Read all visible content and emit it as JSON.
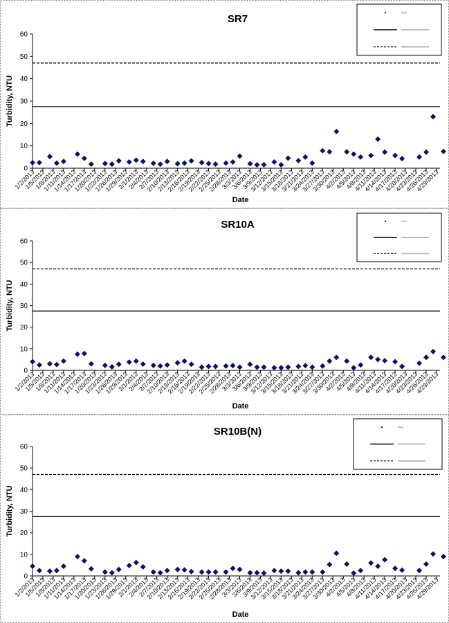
{
  "x_ticks": [
    "1/2/2013",
    "1/5/2013",
    "1/8/2013",
    "1/11/2013",
    "1/14/2013",
    "1/17/2013",
    "1/20/2013",
    "1/23/2013",
    "1/26/2013",
    "1/29/2013",
    "2/1/2013",
    "2/4/2013",
    "2/7/2013",
    "2/10/2013",
    "2/13/2013",
    "2/16/2013",
    "2/19/2013",
    "2/22/2013",
    "2/25/2013",
    "2/28/2013",
    "3/3/2013",
    "3/6/2013",
    "3/9/2013",
    "3/12/2013",
    "3/15/2013",
    "3/18/2013",
    "3/21/2013",
    "3/24/2013",
    "3/27/2013",
    "3/30/2013",
    "4/2/2013",
    "4/5/2013",
    "4/8/2013",
    "4/11/2013",
    "4/14/2013",
    "4/17/2013",
    "4/20/2013",
    "4/23/2013",
    "4/26/2013",
    "4/29/2013"
  ],
  "colors": {
    "marker": "#0d0d6e",
    "line": "#000000",
    "frame": "#7f7f7f"
  },
  "chart_data": [
    {
      "type": "scatter",
      "title": "SR7",
      "xlabel": "Date",
      "ylabel": "Turbidity, NTU",
      "ylim": [
        0,
        60
      ],
      "yticks": [
        0,
        10,
        20,
        30,
        40,
        50,
        60
      ],
      "xlim": [
        "1/2/2013",
        "4/30/2013"
      ],
      "grid": false,
      "legend_position": "top-right",
      "reference_lines": [
        {
          "y": 27.5,
          "style": "solid"
        },
        {
          "y": 47,
          "style": "dashed"
        }
      ],
      "points": [
        [
          "1/2/2013",
          2.5
        ],
        [
          "1/4/2013",
          2.5
        ],
        [
          "1/7/2013",
          5.2
        ],
        [
          "1/9/2013",
          2.3
        ],
        [
          "1/11/2013",
          3.0
        ],
        [
          "1/15/2013",
          6.3
        ],
        [
          "1/17/2013",
          4.4
        ],
        [
          "1/19/2013",
          1.8
        ],
        [
          "1/23/2013",
          2.1
        ],
        [
          "1/25/2013",
          1.8
        ],
        [
          "1/27/2013",
          3.3
        ],
        [
          "1/30/2013",
          2.8
        ],
        [
          "2/1/2013",
          3.6
        ],
        [
          "2/3/2013",
          3.0
        ],
        [
          "2/6/2013",
          2.2
        ],
        [
          "2/8/2013",
          1.8
        ],
        [
          "2/10/2013",
          3.0
        ],
        [
          "2/13/2013",
          2.0
        ],
        [
          "2/15/2013",
          2.3
        ],
        [
          "2/17/2013",
          3.3
        ],
        [
          "2/20/2013",
          2.5
        ],
        [
          "2/22/2013",
          2.1
        ],
        [
          "2/24/2013",
          1.8
        ],
        [
          "2/27/2013",
          2.3
        ],
        [
          "3/1/2013",
          2.8
        ],
        [
          "3/3/2013",
          5.4
        ],
        [
          "3/6/2013",
          2.0
        ],
        [
          "3/8/2013",
          1.5
        ],
        [
          "3/10/2013",
          1.6
        ],
        [
          "3/13/2013",
          2.8
        ],
        [
          "3/15/2013",
          1.5
        ],
        [
          "3/17/2013",
          4.5
        ],
        [
          "3/20/2013",
          3.4
        ],
        [
          "3/22/2013",
          5.0
        ],
        [
          "3/24/2013",
          2.3
        ],
        [
          "3/27/2013",
          7.8
        ],
        [
          "3/29/2013",
          7.3
        ],
        [
          "3/31/2013",
          16.4
        ],
        [
          "4/3/2013",
          7.3
        ],
        [
          "4/5/2013",
          6.3
        ],
        [
          "4/7/2013",
          5.0
        ],
        [
          "4/10/2013",
          5.7
        ],
        [
          "4/12/2013",
          13.0
        ],
        [
          "4/14/2013",
          7.2
        ],
        [
          "4/17/2013",
          5.7
        ],
        [
          "4/19/2013",
          4.3
        ],
        [
          "4/24/2013",
          5.0
        ],
        [
          "4/26/2013",
          7.2
        ],
        [
          "4/28/2013",
          23.0
        ],
        [
          "5/1/2013",
          7.5
        ]
      ]
    },
    {
      "type": "scatter",
      "title": "SR10A",
      "xlabel": "Date",
      "ylabel": "Turbidity, NTU",
      "ylim": [
        0,
        60
      ],
      "yticks": [
        0,
        10,
        20,
        30,
        40,
        50,
        60
      ],
      "xlim": [
        "1/2/2013",
        "4/30/2013"
      ],
      "grid": false,
      "legend_position": "top-right",
      "reference_lines": [
        {
          "y": 27.5,
          "style": "solid"
        },
        {
          "y": 47,
          "style": "dashed"
        }
      ],
      "points": [
        [
          "1/2/2013",
          4.0
        ],
        [
          "1/4/2013",
          2.5
        ],
        [
          "1/7/2013",
          3.0
        ],
        [
          "1/9/2013",
          2.7
        ],
        [
          "1/11/2013",
          4.3
        ],
        [
          "1/15/2013",
          7.5
        ],
        [
          "1/17/2013",
          7.8
        ],
        [
          "1/19/2013",
          3.0
        ],
        [
          "1/23/2013",
          2.3
        ],
        [
          "1/25/2013",
          1.6
        ],
        [
          "1/27/2013",
          2.8
        ],
        [
          "1/30/2013",
          3.8
        ],
        [
          "2/1/2013",
          4.3
        ],
        [
          "2/3/2013",
          2.9
        ],
        [
          "2/6/2013",
          2.3
        ],
        [
          "2/8/2013",
          2.0
        ],
        [
          "2/10/2013",
          2.5
        ],
        [
          "2/13/2013",
          3.5
        ],
        [
          "2/15/2013",
          4.3
        ],
        [
          "2/17/2013",
          2.8
        ],
        [
          "2/20/2013",
          1.5
        ],
        [
          "2/22/2013",
          1.8
        ],
        [
          "2/24/2013",
          1.8
        ],
        [
          "2/27/2013",
          2.0
        ],
        [
          "3/1/2013",
          2.2
        ],
        [
          "3/3/2013",
          1.5
        ],
        [
          "3/6/2013",
          2.8
        ],
        [
          "3/8/2013",
          1.5
        ],
        [
          "3/10/2013",
          1.5
        ],
        [
          "3/13/2013",
          1.2
        ],
        [
          "3/15/2013",
          1.2
        ],
        [
          "3/17/2013",
          1.5
        ],
        [
          "3/20/2013",
          1.8
        ],
        [
          "3/22/2013",
          2.2
        ],
        [
          "3/24/2013",
          1.5
        ],
        [
          "3/27/2013",
          2.0
        ],
        [
          "3/29/2013",
          4.3
        ],
        [
          "3/31/2013",
          6.0
        ],
        [
          "4/3/2013",
          4.3
        ],
        [
          "4/5/2013",
          1.2
        ],
        [
          "4/7/2013",
          2.5
        ],
        [
          "4/10/2013",
          6.0
        ],
        [
          "4/12/2013",
          5.0
        ],
        [
          "4/14/2013",
          4.5
        ],
        [
          "4/17/2013",
          4.0
        ],
        [
          "4/19/2013",
          1.8
        ],
        [
          "4/24/2013",
          3.3
        ],
        [
          "4/26/2013",
          6.0
        ],
        [
          "4/28/2013",
          8.7
        ],
        [
          "5/1/2013",
          6.0
        ]
      ]
    },
    {
      "type": "scatter",
      "title": "SR10B(N)",
      "xlabel": "Date",
      "ylabel": "Turbidity, NTU",
      "ylim": [
        0,
        60
      ],
      "yticks": [
        0,
        10,
        20,
        30,
        40,
        50,
        60
      ],
      "xlim": [
        "1/2/2013",
        "4/30/2013"
      ],
      "grid": false,
      "legend_position": "top-right",
      "reference_lines": [
        {
          "y": 27.5,
          "style": "solid"
        },
        {
          "y": 47,
          "style": "dashed"
        }
      ],
      "points": [
        [
          "1/2/2013",
          4.5
        ],
        [
          "1/4/2013",
          2.5
        ],
        [
          "1/7/2013",
          2.2
        ],
        [
          "1/9/2013",
          2.5
        ],
        [
          "1/11/2013",
          4.5
        ],
        [
          "1/15/2013",
          9.0
        ],
        [
          "1/17/2013",
          7.0
        ],
        [
          "1/19/2013",
          3.3
        ],
        [
          "1/23/2013",
          1.8
        ],
        [
          "1/25/2013",
          1.5
        ],
        [
          "1/27/2013",
          3.0
        ],
        [
          "1/30/2013",
          4.8
        ],
        [
          "2/1/2013",
          6.2
        ],
        [
          "2/3/2013",
          4.2
        ],
        [
          "2/6/2013",
          1.8
        ],
        [
          "2/8/2013",
          1.5
        ],
        [
          "2/10/2013",
          2.5
        ],
        [
          "2/13/2013",
          3.0
        ],
        [
          "2/15/2013",
          2.8
        ],
        [
          "2/17/2013",
          2.0
        ],
        [
          "2/20/2013",
          1.8
        ],
        [
          "2/22/2013",
          1.8
        ],
        [
          "2/24/2013",
          1.8
        ],
        [
          "2/27/2013",
          1.8
        ],
        [
          "3/1/2013",
          3.5
        ],
        [
          "3/3/2013",
          3.0
        ],
        [
          "3/6/2013",
          1.5
        ],
        [
          "3/8/2013",
          1.5
        ],
        [
          "3/10/2013",
          1.3
        ],
        [
          "3/13/2013",
          2.5
        ],
        [
          "3/15/2013",
          2.2
        ],
        [
          "3/17/2013",
          2.2
        ],
        [
          "3/20/2013",
          1.5
        ],
        [
          "3/22/2013",
          1.8
        ],
        [
          "3/24/2013",
          1.8
        ],
        [
          "3/27/2013",
          1.8
        ],
        [
          "3/29/2013",
          5.3
        ],
        [
          "3/31/2013",
          10.5
        ],
        [
          "4/3/2013",
          5.5
        ],
        [
          "4/5/2013",
          1.3
        ],
        [
          "4/7/2013",
          2.5
        ],
        [
          "4/10/2013",
          6.0
        ],
        [
          "4/12/2013",
          4.5
        ],
        [
          "4/14/2013",
          7.5
        ],
        [
          "4/17/2013",
          3.5
        ],
        [
          "4/19/2013",
          2.7
        ],
        [
          "4/24/2013",
          2.5
        ],
        [
          "4/26/2013",
          5.5
        ],
        [
          "4/28/2013",
          10.2
        ],
        [
          "5/1/2013",
          9.0
        ]
      ]
    }
  ]
}
